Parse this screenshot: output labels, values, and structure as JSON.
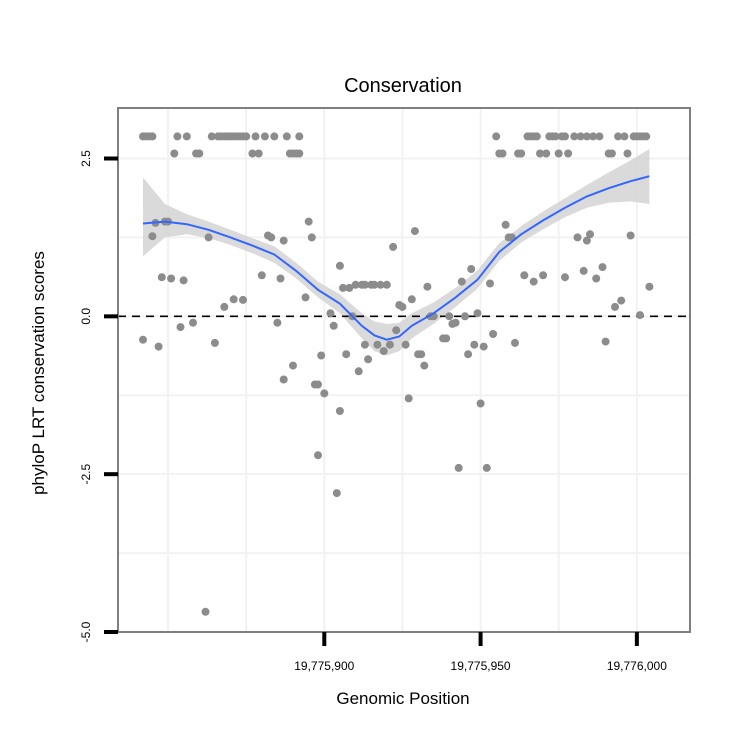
{
  "chart_data": {
    "type": "scatter",
    "title": "Conservation",
    "xlabel": "Genomic Position",
    "ylabel": "phyloP LRT conservation scores",
    "xlim": [
      19775834,
      19776017
    ],
    "ylim": [
      -5.0,
      3.3
    ],
    "x_ticks": [
      19775900,
      19775950,
      19776000
    ],
    "x_tick_labels": [
      "19,775,900",
      "19,775,950",
      "19,776,000"
    ],
    "y_ticks": [
      -5.0,
      -2.5,
      0.0,
      2.5
    ],
    "y_tick_labels": [
      "-5.0",
      "-2.5",
      "0.0",
      "2.5"
    ],
    "reference_line": {
      "y": 0,
      "style": "dashed"
    },
    "colors": {
      "points": "#8c8c8c",
      "smooth": "#3366ff",
      "ribbon": "#d3d3d3",
      "frame": "#7f7f7f",
      "grid": "#f2f2f2"
    },
    "series": [
      {
        "name": "scores",
        "kind": "points",
        "points": [
          [
            19775842,
            2.85
          ],
          [
            19775843,
            2.85
          ],
          [
            19775844,
            2.85
          ],
          [
            19775845,
            2.85
          ],
          [
            19775842,
            -0.37
          ],
          [
            19775845,
            1.27
          ],
          [
            19775846,
            1.48
          ],
          [
            19775847,
            -0.48
          ],
          [
            19775848,
            0.62
          ],
          [
            19775849,
            1.5
          ],
          [
            19775850,
            1.5
          ],
          [
            19775851,
            0.6
          ],
          [
            19775852,
            2.58
          ],
          [
            19775853,
            2.85
          ],
          [
            19775854,
            -0.17
          ],
          [
            19775855,
            0.57
          ],
          [
            19775856,
            2.85
          ],
          [
            19775858,
            -0.1
          ],
          [
            19775859,
            2.58
          ],
          [
            19775860,
            2.58
          ],
          [
            19775862,
            -4.68
          ],
          [
            19775863,
            1.25
          ],
          [
            19775864,
            2.85
          ],
          [
            19775865,
            -0.42
          ],
          [
            19775866,
            2.85
          ],
          [
            19775867,
            2.85
          ],
          [
            19775868,
            2.85
          ],
          [
            19775868,
            0.15
          ],
          [
            19775869,
            2.85
          ],
          [
            19775870,
            2.85
          ],
          [
            19775871,
            2.85
          ],
          [
            19775871,
            0.27
          ],
          [
            19775872,
            2.85
          ],
          [
            19775873,
            2.85
          ],
          [
            19775874,
            2.85
          ],
          [
            19775874,
            0.26
          ],
          [
            19775875,
            2.85
          ],
          [
            19775877,
            2.58
          ],
          [
            19775878,
            2.85
          ],
          [
            19775879,
            2.58
          ],
          [
            19775880,
            0.65
          ],
          [
            19775881,
            2.85
          ],
          [
            19775882,
            1.28
          ],
          [
            19775883,
            1.25
          ],
          [
            19775884,
            2.85
          ],
          [
            19775885,
            -0.1
          ],
          [
            19775886,
            0.6
          ],
          [
            19775887,
            1.2
          ],
          [
            19775887,
            -1.0
          ],
          [
            19775888,
            2.85
          ],
          [
            19775889,
            2.58
          ],
          [
            19775890,
            -0.78
          ],
          [
            19775890,
            2.58
          ],
          [
            19775891,
            2.58
          ],
          [
            19775892,
            2.85
          ],
          [
            19775892,
            2.58
          ],
          [
            19775894,
            0.3
          ],
          [
            19775895,
            1.5
          ],
          [
            19775896,
            1.25
          ],
          [
            19775897,
            -1.08
          ],
          [
            19775898,
            -1.08
          ],
          [
            19775898,
            -2.2
          ],
          [
            19775899,
            -0.62
          ],
          [
            19775900,
            -1.22
          ],
          [
            19775902,
            0.05
          ],
          [
            19775903,
            -0.15
          ],
          [
            19775904,
            -2.8
          ],
          [
            19775905,
            0.8
          ],
          [
            19775905,
            -1.5
          ],
          [
            19775906,
            0.45
          ],
          [
            19775907,
            -0.6
          ],
          [
            19775908,
            0.45
          ],
          [
            19775909,
            0.0
          ],
          [
            19775910,
            0.5
          ],
          [
            19775911,
            -0.87
          ],
          [
            19775912,
            0.5
          ],
          [
            19775913,
            0.5
          ],
          [
            19775913,
            -0.45
          ],
          [
            19775914,
            -0.68
          ],
          [
            19775915,
            0.5
          ],
          [
            19775916,
            0.5
          ],
          [
            19775917,
            -0.45
          ],
          [
            19775918,
            0.5
          ],
          [
            19775919,
            -0.55
          ],
          [
            19775920,
            0.5
          ],
          [
            19775921,
            -0.45
          ],
          [
            19775922,
            1.1
          ],
          [
            19775923,
            -0.22
          ],
          [
            19775924,
            0.18
          ],
          [
            19775925,
            0.15
          ],
          [
            19775926,
            -0.45
          ],
          [
            19775927,
            -1.3
          ],
          [
            19775928,
            0.27
          ],
          [
            19775929,
            1.35
          ],
          [
            19775930,
            -0.6
          ],
          [
            19775931,
            -0.6
          ],
          [
            19775932,
            -0.78
          ],
          [
            19775933,
            0.47
          ],
          [
            19775934,
            0.0
          ],
          [
            19775935,
            0.0
          ],
          [
            19775938,
            -0.35
          ],
          [
            19775939,
            -0.35
          ],
          [
            19775940,
            0.0
          ],
          [
            19775941,
            -0.12
          ],
          [
            19775942,
            -0.1
          ],
          [
            19775943,
            -2.4
          ],
          [
            19775944,
            0.55
          ],
          [
            19775945,
            0.0
          ],
          [
            19775946,
            -0.6
          ],
          [
            19775947,
            0.75
          ],
          [
            19775948,
            -0.45
          ],
          [
            19775949,
            0.05
          ],
          [
            19775950,
            -1.38
          ],
          [
            19775951,
            -0.48
          ],
          [
            19775952,
            -2.4
          ],
          [
            19775953,
            0.52
          ],
          [
            19775954,
            -0.28
          ],
          [
            19775955,
            2.85
          ],
          [
            19775956,
            2.58
          ],
          [
            19775957,
            2.58
          ],
          [
            19775958,
            1.45
          ],
          [
            19775959,
            1.25
          ],
          [
            19775960,
            1.25
          ],
          [
            19775961,
            -0.42
          ],
          [
            19775962,
            2.58
          ],
          [
            19775963,
            2.58
          ],
          [
            19775964,
            0.65
          ],
          [
            19775965,
            2.85
          ],
          [
            19775966,
            2.85
          ],
          [
            19775967,
            2.85
          ],
          [
            19775967,
            0.55
          ],
          [
            19775968,
            2.85
          ],
          [
            19775969,
            2.58
          ],
          [
            19775970,
            0.65
          ],
          [
            19775971,
            2.58
          ],
          [
            19775972,
            2.85
          ],
          [
            19775973,
            2.85
          ],
          [
            19775974,
            2.85
          ],
          [
            19775975,
            2.58
          ],
          [
            19775976,
            2.85
          ],
          [
            19775977,
            2.85
          ],
          [
            19775977,
            0.62
          ],
          [
            19775978,
            2.58
          ],
          [
            19775980,
            2.85
          ],
          [
            19775981,
            1.25
          ],
          [
            19775982,
            2.85
          ],
          [
            19775983,
            0.72
          ],
          [
            19775984,
            1.2
          ],
          [
            19775984,
            2.85
          ],
          [
            19775985,
            1.3
          ],
          [
            19775986,
            2.85
          ],
          [
            19775987,
            0.6
          ],
          [
            19775988,
            2.85
          ],
          [
            19775989,
            0.78
          ],
          [
            19775990,
            -0.4
          ],
          [
            19775991,
            2.58
          ],
          [
            19775992,
            2.58
          ],
          [
            19775993,
            0.15
          ],
          [
            19775994,
            2.85
          ],
          [
            19775995,
            0.25
          ],
          [
            19775996,
            2.85
          ],
          [
            19775997,
            2.58
          ],
          [
            19775998,
            1.28
          ],
          [
            19775999,
            2.85
          ],
          [
            19776000,
            2.85
          ],
          [
            19776001,
            2.85
          ],
          [
            19776001,
            0.02
          ],
          [
            19776002,
            2.85
          ],
          [
            19776003,
            2.85
          ],
          [
            19776004,
            0.47
          ]
        ]
      },
      {
        "name": "loess fit",
        "kind": "smooth",
        "x": [
          19775842,
          19775849,
          19775856,
          19775863,
          19775870,
          19775877,
          19775884,
          19775891,
          19775898,
          19775905,
          19775912,
          19775916,
          19775920,
          19775924,
          19775928,
          19775935,
          19775942,
          19775949,
          19775956,
          19775963,
          19775970,
          19775977,
          19775984,
          19775991,
          19775998,
          19776004
        ],
        "y": [
          1.47,
          1.5,
          1.46,
          1.37,
          1.25,
          1.12,
          0.98,
          0.72,
          0.42,
          0.2,
          -0.15,
          -0.3,
          -0.37,
          -0.32,
          -0.15,
          0.05,
          0.3,
          0.58,
          1.02,
          1.3,
          1.52,
          1.72,
          1.9,
          2.03,
          2.14,
          2.22
        ],
        "lower": [
          0.95,
          1.25,
          1.3,
          1.24,
          1.13,
          1.0,
          0.85,
          0.6,
          0.3,
          0.05,
          -0.35,
          -0.55,
          -0.62,
          -0.55,
          -0.35,
          -0.12,
          0.15,
          0.44,
          0.88,
          1.17,
          1.38,
          1.57,
          1.72,
          1.8,
          1.82,
          1.78
        ],
        "upper": [
          2.2,
          1.78,
          1.62,
          1.5,
          1.37,
          1.24,
          1.11,
          0.85,
          0.55,
          0.35,
          0.05,
          -0.08,
          -0.12,
          -0.1,
          0.05,
          0.22,
          0.45,
          0.73,
          1.16,
          1.43,
          1.66,
          1.87,
          2.08,
          2.28,
          2.47,
          2.65
        ]
      }
    ]
  }
}
